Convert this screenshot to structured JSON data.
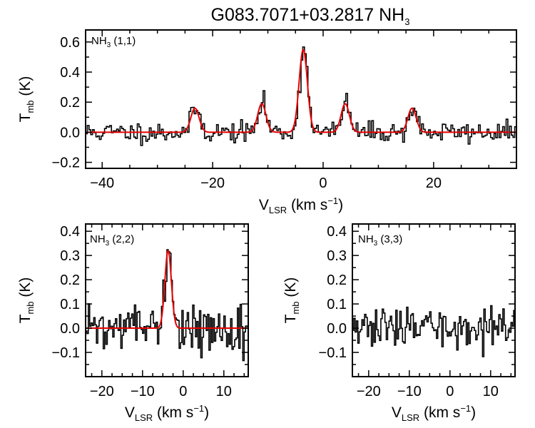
{
  "title": {
    "prefix": "G083.7071+03.2817 NH",
    "sub": "3"
  },
  "colors": {
    "spectrum": "#000000",
    "fit": "#e60000",
    "frame": "#000000"
  },
  "chart_data": [
    {
      "id": "nh3_11",
      "type": "line",
      "annotation": {
        "prefix": "NH",
        "sub": "3",
        "suffix": " (1,1)"
      },
      "ylabel": {
        "main": "T",
        "sub": "mb",
        "suffix": " (K)"
      },
      "xlabel": {
        "main": "V",
        "sub": "LSR",
        "suffix": " (km s",
        "sup": "−1",
        "close": ")"
      },
      "xlim": [
        -43,
        35
      ],
      "ylim": [
        -0.24,
        0.68
      ],
      "xticks": [
        -40,
        -20,
        0,
        20
      ],
      "xtick_labels": [
        "−40",
        "−20",
        "0",
        "20"
      ],
      "yticks": [
        -0.2,
        0.0,
        0.2,
        0.4,
        0.6
      ],
      "ytick_labels": [
        "−0.2",
        "0.0",
        "0.2",
        "0.4",
        "0.6"
      ],
      "noise": 0.035,
      "seed": 11,
      "fit": {
        "components": [
          {
            "center": -23.2,
            "amplitude": 0.16,
            "sigma": 0.75
          },
          {
            "center": -11.1,
            "amplitude": 0.19,
            "sigma": 0.75
          },
          {
            "center": -3.6,
            "amplitude": 0.55,
            "sigma": 0.75
          },
          {
            "center": 4.0,
            "amplitude": 0.19,
            "sigma": 0.75
          },
          {
            "center": 16.1,
            "amplitude": 0.16,
            "sigma": 0.75
          }
        ]
      }
    },
    {
      "id": "nh3_22",
      "type": "line",
      "annotation": {
        "prefix": "NH",
        "sub": "3",
        "suffix": " (2,2)"
      },
      "ylabel": {
        "main": "T",
        "sub": "mb",
        "suffix": " (K)"
      },
      "xlabel": {
        "main": "V",
        "sub": "LSR",
        "suffix": " (km s",
        "sup": "−1",
        "close": ")"
      },
      "xlim": [
        -24,
        16
      ],
      "ylim": [
        -0.2,
        0.43
      ],
      "xticks": [
        -20,
        -10,
        0,
        10
      ],
      "xtick_labels": [
        "−20",
        "−10",
        "0",
        "10"
      ],
      "yticks": [
        -0.1,
        0.0,
        0.1,
        0.2,
        0.3,
        0.4
      ],
      "ytick_labels": [
        "−0.1",
        "0.0",
        "0.1",
        "0.2",
        "0.3",
        "0.4"
      ],
      "noise": 0.045,
      "seed": 22,
      "fit": {
        "components": [
          {
            "center": -3.7,
            "amplitude": 0.32,
            "sigma": 0.8
          }
        ]
      }
    },
    {
      "id": "nh3_33",
      "type": "line",
      "annotation": {
        "prefix": "NH",
        "sub": "3",
        "suffix": " (3,3)"
      },
      "ylabel": {
        "main": "T",
        "sub": "mb",
        "suffix": " (K)"
      },
      "xlabel": {
        "main": "V",
        "sub": "LSR",
        "suffix": " (km s",
        "sup": "−1",
        "close": ")"
      },
      "xlim": [
        -24,
        16
      ],
      "ylim": [
        -0.2,
        0.43
      ],
      "xticks": [
        -20,
        -10,
        0,
        10
      ],
      "xtick_labels": [
        "−20",
        "−10",
        "0",
        "10"
      ],
      "yticks": [
        -0.1,
        0.0,
        0.1,
        0.2,
        0.3,
        0.4
      ],
      "ytick_labels": [
        "−0.1",
        "0.0",
        "0.1",
        "0.2",
        "0.3",
        "0.4"
      ],
      "noise": 0.04,
      "seed": 33,
      "fit": null
    }
  ]
}
